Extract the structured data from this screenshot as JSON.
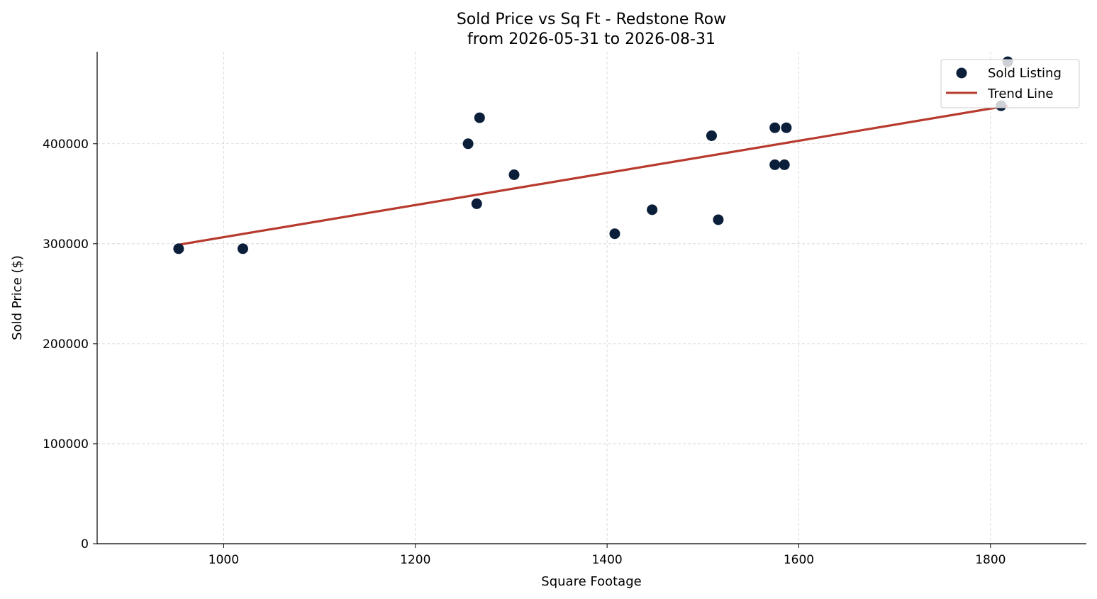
{
  "chart_data": {
    "type": "scatter",
    "title": "Sold Price vs Sq Ft - Redstone Row",
    "subtitle": "from 2026-05-31 to 2026-08-31",
    "xlabel": "Square Footage",
    "ylabel": "Sold Price ($)",
    "xlim": [
      868,
      1900
    ],
    "ylim": [
      0,
      492000
    ],
    "xticks": [
      1000,
      1200,
      1400,
      1600,
      1800
    ],
    "yticks": [
      0,
      100000,
      200000,
      300000,
      400000
    ],
    "grid": true,
    "legend_position": "top-right",
    "series": [
      {
        "name": "Sold Listing",
        "kind": "scatter",
        "color": "#0b1f3a",
        "points": [
          {
            "x": 953,
            "y": 295000
          },
          {
            "x": 1020,
            "y": 295000
          },
          {
            "x": 1255,
            "y": 400000
          },
          {
            "x": 1264,
            "y": 340000
          },
          {
            "x": 1267,
            "y": 426000
          },
          {
            "x": 1303,
            "y": 369000
          },
          {
            "x": 1408,
            "y": 310000
          },
          {
            "x": 1447,
            "y": 334000
          },
          {
            "x": 1509,
            "y": 408000
          },
          {
            "x": 1516,
            "y": 324000
          },
          {
            "x": 1575,
            "y": 416000
          },
          {
            "x": 1575,
            "y": 379000
          },
          {
            "x": 1585,
            "y": 379000
          },
          {
            "x": 1587,
            "y": 416000
          },
          {
            "x": 1811,
            "y": 438000
          },
          {
            "x": 1818,
            "y": 482000
          }
        ]
      },
      {
        "name": "Trend Line",
        "kind": "line",
        "color": "#b83a2e",
        "points": [
          {
            "x": 953,
            "y": 299000
          },
          {
            "x": 1818,
            "y": 438000
          }
        ]
      }
    ]
  }
}
